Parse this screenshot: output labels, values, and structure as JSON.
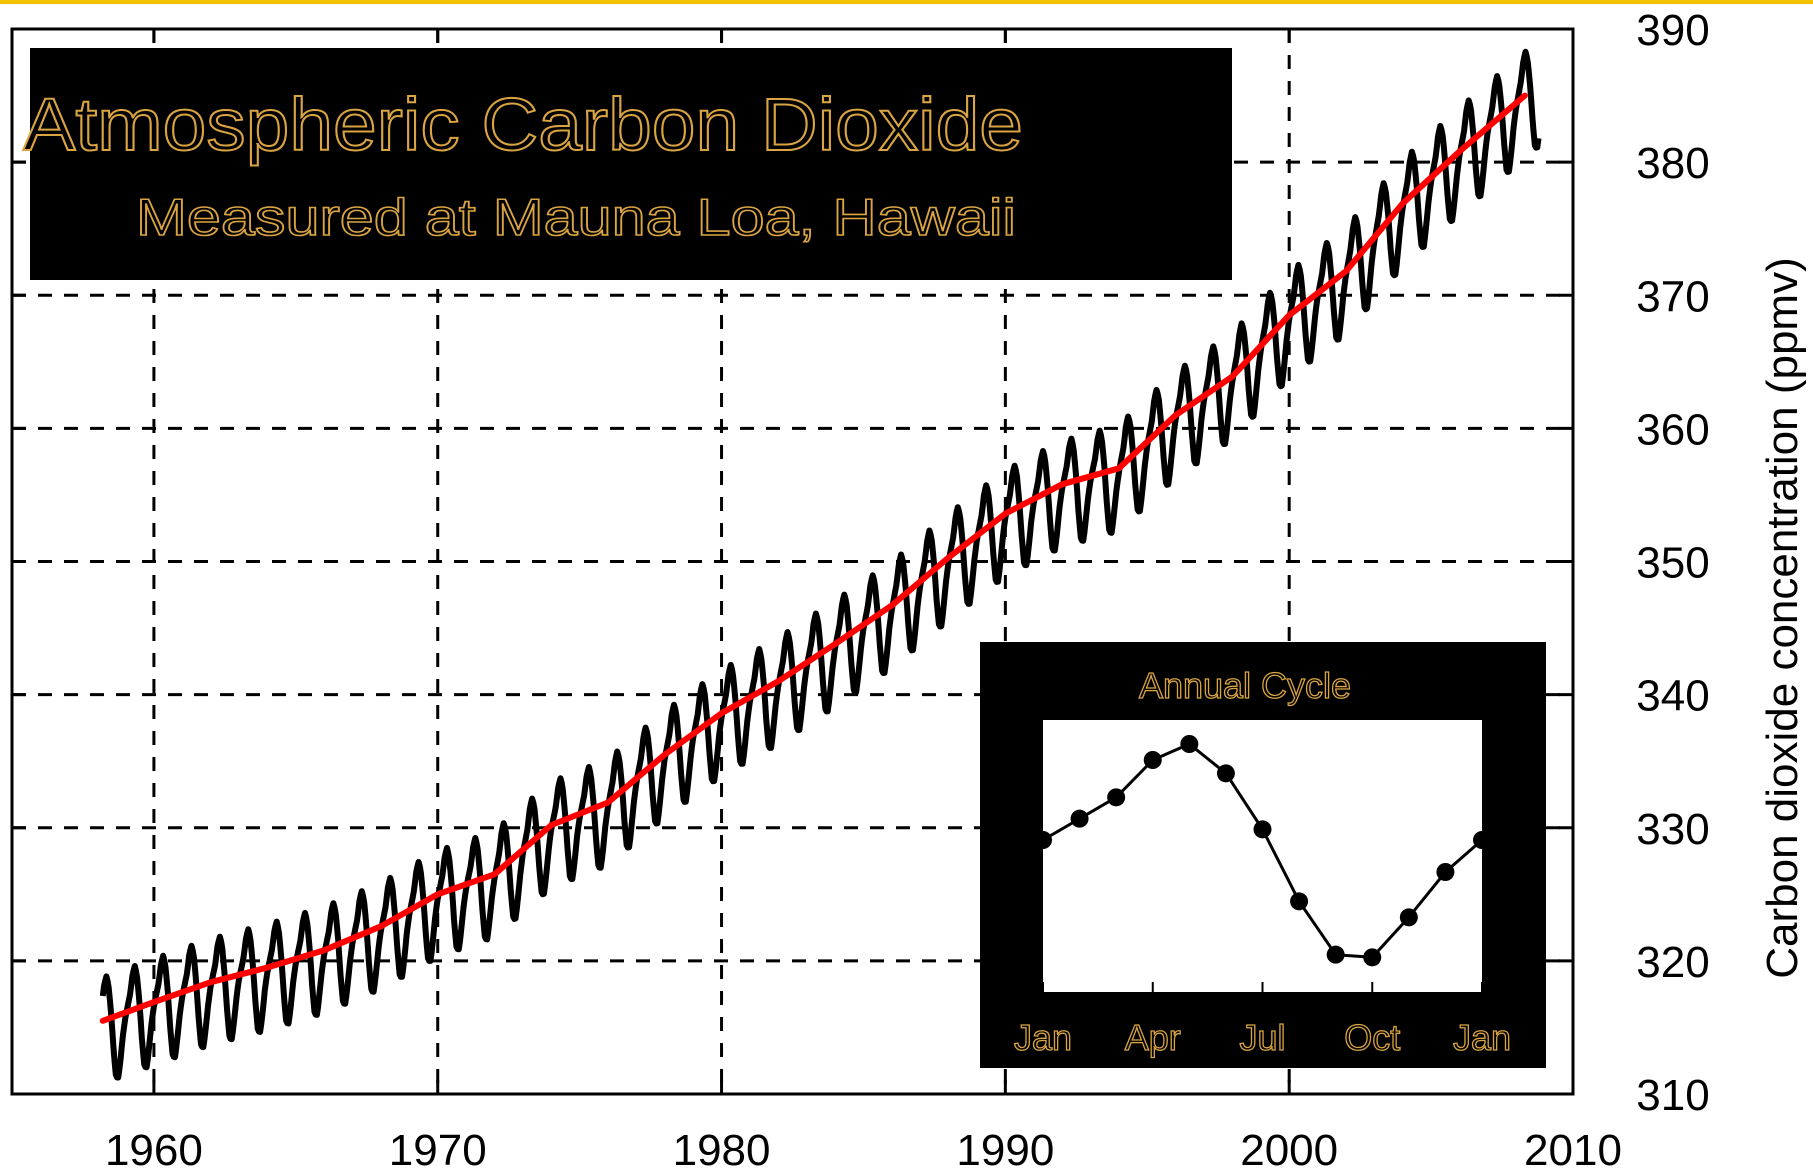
{
  "colors": {
    "top_bar": "#f2c200",
    "raw_series": "#000000",
    "trend_series": "#ff0000",
    "grid": "#000000",
    "title_box": "#000000",
    "title_text_fill": "#000000",
    "title_text_outline": "#d9a441",
    "inset_frame": "#000000"
  },
  "chart_data": [
    {
      "type": "line",
      "title": "Atmospheric Carbon Dioxide",
      "subtitle": "Measured at Mauna Loa, Hawaii",
      "xlabel": "",
      "ylabel": "Carbon dioxide concentration (ppmv)",
      "xlim": [
        1955,
        2010
      ],
      "ylim": [
        310,
        390
      ],
      "x_ticks": [
        "1960",
        "1970",
        "1980",
        "1990",
        "2000",
        "2010"
      ],
      "y_ticks": [
        "390",
        "380",
        "370",
        "360",
        "350",
        "340",
        "330",
        "320",
        "310"
      ],
      "grid": true,
      "y_axis_side": "right",
      "seasonal_amplitude_ppmv": 3.3,
      "series": [
        {
          "role": "monthly",
          "x_start": 1958.2,
          "x_end": 2008.8,
          "color": "#000000"
        },
        {
          "role": "trend",
          "x": [
            1958.2,
            1960,
            1962,
            1964,
            1966,
            1968,
            1970,
            1972,
            1974,
            1976,
            1978,
            1980,
            1982,
            1984,
            1986,
            1988,
            1990,
            1992,
            1994,
            1996,
            1998,
            2000,
            2002,
            2004,
            2006,
            2008.3
          ],
          "y": [
            315.5,
            316.9,
            318.4,
            319.5,
            320.8,
            322.6,
            325.0,
            326.5,
            330.2,
            331.9,
            335.5,
            338.6,
            341.0,
            343.8,
            346.7,
            350.3,
            353.6,
            355.8,
            357.0,
            361.0,
            363.9,
            368.5,
            371.8,
            376.9,
            380.8,
            385.0
          ],
          "color": "#ff0000"
        }
      ]
    },
    {
      "type": "line",
      "title": "Annual Cycle",
      "x_ticks": [
        "Jan",
        "Apr",
        "Jul",
        "Oct",
        "Jan"
      ],
      "points": [
        {
          "month": 1,
          "anomaly": -0.3
        },
        {
          "month": 2,
          "anomaly": 0.5
        },
        {
          "month": 3,
          "anomaly": 1.3
        },
        {
          "month": 4,
          "anomaly": 2.7
        },
        {
          "month": 5,
          "anomaly": 3.3
        },
        {
          "month": 6,
          "anomaly": 2.2
        },
        {
          "month": 7,
          "anomaly": 0.1
        },
        {
          "month": 8,
          "anomaly": -2.6
        },
        {
          "month": 9,
          "anomaly": -4.6
        },
        {
          "month": 10,
          "anomaly": -4.7
        },
        {
          "month": 11,
          "anomaly": -3.2
        },
        {
          "month": 12,
          "anomaly": -1.5
        },
        {
          "month": 13,
          "anomaly": -0.3
        }
      ]
    }
  ]
}
